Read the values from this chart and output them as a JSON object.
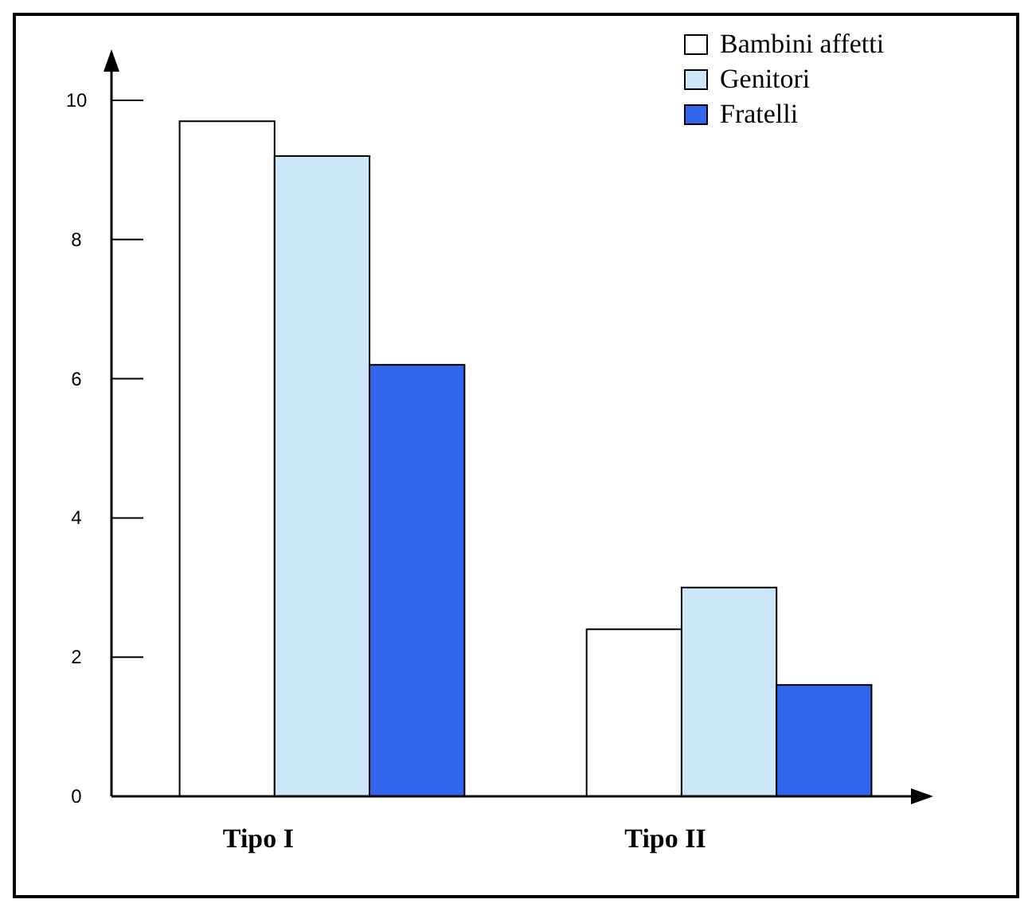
{
  "chart_data": {
    "type": "bar",
    "categories": [
      "Tipo I",
      "Tipo II"
    ],
    "series": [
      {
        "name": "Bambini affetti",
        "color": "#ffffff",
        "values": [
          9.7,
          2.4
        ]
      },
      {
        "name": "Genitori",
        "color": "#cce8f8",
        "values": [
          9.2,
          3.0
        ]
      },
      {
        "name": "Fratelli",
        "color": "#3366ee",
        "values": [
          6.2,
          1.6
        ]
      }
    ],
    "ylim": [
      0,
      10
    ],
    "yticks": [
      0,
      2,
      4,
      6,
      8,
      10
    ],
    "grid": false,
    "legend": "top right"
  }
}
